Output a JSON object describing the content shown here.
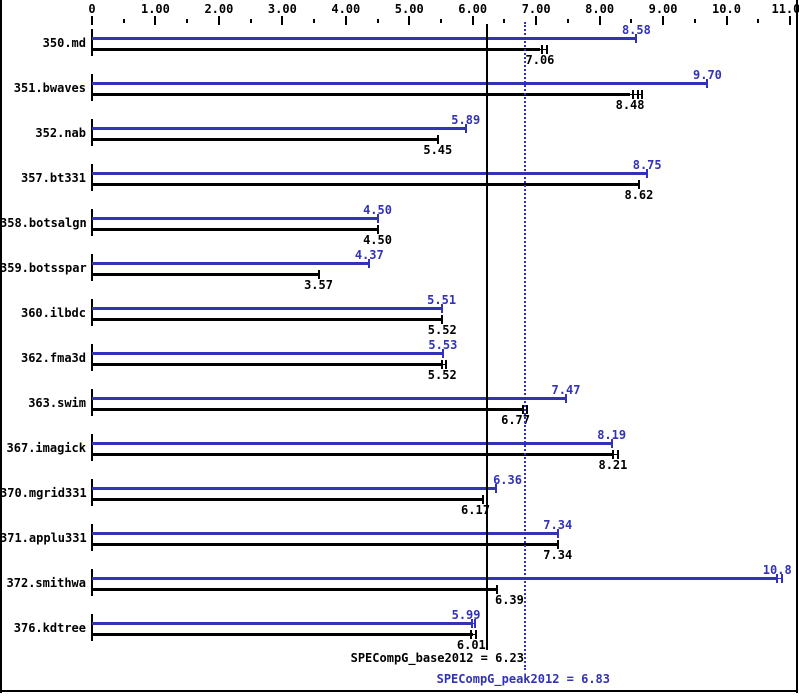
{
  "chart_data": {
    "type": "bar",
    "orientation": "horizontal",
    "xlim": [
      0,
      11.2
    ],
    "grid": false,
    "legend": "none",
    "colors": {
      "peak": "#3232b8",
      "base": "#000000"
    },
    "x_ticks": [
      {
        "value": 0,
        "label": "0"
      },
      {
        "value": 1,
        "label": "1.00"
      },
      {
        "value": 2,
        "label": "2.00"
      },
      {
        "value": 3,
        "label": "3.00"
      },
      {
        "value": 4,
        "label": "4.00"
      },
      {
        "value": 5,
        "label": "5.00"
      },
      {
        "value": 6,
        "label": "6.00"
      },
      {
        "value": 7,
        "label": "7.00"
      },
      {
        "value": 8,
        "label": "8.00"
      },
      {
        "value": 9,
        "label": "9.00"
      },
      {
        "value": 10,
        "label": "10.0"
      },
      {
        "value": 11,
        "label": "11.0",
        "label_dx": -4
      }
    ],
    "series_names": [
      "peak",
      "base"
    ],
    "benchmarks": [
      {
        "name": "350.md",
        "peak": 8.58,
        "base": 7.06,
        "peak_label": "8.58",
        "base_label": "7.06",
        "base_ticks": [
          2,
          7
        ]
      },
      {
        "name": "351.bwaves",
        "peak": 9.7,
        "base": 8.48,
        "peak_label": "9.70",
        "base_label": "8.48",
        "base_ticks": [
          3,
          8,
          12
        ]
      },
      {
        "name": "352.nab",
        "peak": 5.89,
        "base": 5.45,
        "peak_label": "5.89",
        "base_label": "5.45"
      },
      {
        "name": "357.bt331",
        "peak": 8.75,
        "base": 8.62,
        "peak_label": "8.75",
        "base_label": "8.62"
      },
      {
        "name": "358.botsalgn",
        "peak": 4.5,
        "base": 4.5,
        "peak_label": "4.50",
        "base_label": "4.50"
      },
      {
        "name": "359.botsspar",
        "peak": 4.37,
        "base": 3.57,
        "peak_label": "4.37",
        "base_label": "3.57"
      },
      {
        "name": "360.ilbdc",
        "peak": 5.51,
        "base": 5.52,
        "peak_label": "5.51",
        "base_label": "5.52"
      },
      {
        "name": "362.fma3d",
        "peak": 5.53,
        "base": 5.52,
        "peak_label": "5.53",
        "base_label": "5.52",
        "base_ticks": [
          0,
          4
        ]
      },
      {
        "name": "363.swim",
        "peak": 7.47,
        "base": 6.77,
        "peak_label": "7.47",
        "base_label": "6.77",
        "base_ticks": [
          1,
          5
        ],
        "base_label_dx": -6
      },
      {
        "name": "367.imagick",
        "peak": 8.19,
        "base": 8.21,
        "peak_label": "8.19",
        "base_label": "8.21",
        "base_ticks": [
          0,
          5
        ]
      },
      {
        "name": "370.mgrid331",
        "peak": 6.36,
        "base": 6.17,
        "peak_label": "6.36",
        "base_label": "6.17",
        "peak_label_dx": 12,
        "base_label_dx": -8
      },
      {
        "name": "371.applu331",
        "peak": 7.34,
        "base": 7.34,
        "peak_label": "7.34",
        "base_label": "7.34"
      },
      {
        "name": "372.smithwa",
        "peak": 10.8,
        "base": 6.39,
        "peak_label": "10.8",
        "base_label": "6.39",
        "peak_ticks": [
          0,
          5
        ],
        "base_label_dx": 12
      },
      {
        "name": "376.kdtree",
        "peak": 5.99,
        "base": 6.01,
        "peak_label": "5.99",
        "base_label": "6.01",
        "peak_ticks": [
          0,
          3
        ],
        "base_ticks": [
          -2,
          3
        ],
        "peak_label_dx": -6,
        "base_label_dx": -2
      }
    ],
    "reference_lines": [
      {
        "name": "SPECompG_base2012",
        "value": 6.23,
        "style": "solid",
        "color": "#000000",
        "label": "SPECompG_base2012 = 6.23"
      },
      {
        "name": "SPECompG_peak2012",
        "value": 6.83,
        "style": "dotted",
        "color": "#3232b8",
        "label": "SPECompG_peak2012 = 6.83"
      }
    ]
  }
}
